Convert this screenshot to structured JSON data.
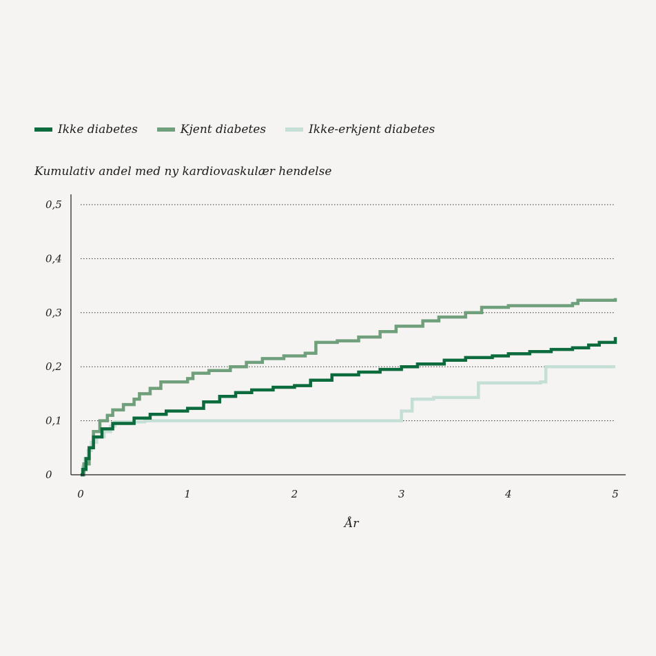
{
  "chart_data": {
    "type": "line",
    "title": "",
    "ylabel": "Kumulativ andel med ny kardiovaskulær hendelse",
    "xlabel": "År",
    "xlim": [
      0,
      5
    ],
    "ylim": [
      0,
      0.5
    ],
    "x_ticks": [
      0,
      1,
      2,
      3,
      4,
      5
    ],
    "x_tick_labels": [
      "0",
      "1",
      "2",
      "3",
      "4",
      "5"
    ],
    "y_ticks": [
      0,
      0.1,
      0.2,
      0.3,
      0.4,
      0.5
    ],
    "y_tick_labels": [
      "0",
      "0,1",
      "0,2",
      "0,3",
      "0,4",
      "0,5"
    ],
    "grid": "horizontal dotted",
    "legend_position": "top-left",
    "step": true,
    "series": [
      {
        "name": "Ikke diabetes",
        "color": "#0c6b3c",
        "points": [
          [
            0,
            0
          ],
          [
            0.02,
            0.01
          ],
          [
            0.05,
            0.03
          ],
          [
            0.08,
            0.05
          ],
          [
            0.12,
            0.07
          ],
          [
            0.2,
            0.085
          ],
          [
            0.3,
            0.095
          ],
          [
            0.5,
            0.105
          ],
          [
            0.65,
            0.112
          ],
          [
            0.8,
            0.118
          ],
          [
            1.0,
            0.123
          ],
          [
            1.15,
            0.135
          ],
          [
            1.3,
            0.145
          ],
          [
            1.45,
            0.152
          ],
          [
            1.6,
            0.157
          ],
          [
            1.8,
            0.162
          ],
          [
            2.0,
            0.165
          ],
          [
            2.15,
            0.175
          ],
          [
            2.35,
            0.185
          ],
          [
            2.6,
            0.19
          ],
          [
            2.8,
            0.195
          ],
          [
            3.0,
            0.2
          ],
          [
            3.15,
            0.205
          ],
          [
            3.4,
            0.212
          ],
          [
            3.6,
            0.217
          ],
          [
            3.85,
            0.22
          ],
          [
            4.0,
            0.224
          ],
          [
            4.2,
            0.228
          ],
          [
            4.4,
            0.232
          ],
          [
            4.6,
            0.235
          ],
          [
            4.75,
            0.24
          ],
          [
            4.85,
            0.245
          ],
          [
            5.0,
            0.255
          ]
        ]
      },
      {
        "name": "Kjent diabetes",
        "color": "#6f9f7b",
        "points": [
          [
            0,
            0
          ],
          [
            0.03,
            0.02
          ],
          [
            0.08,
            0.05
          ],
          [
            0.12,
            0.08
          ],
          [
            0.18,
            0.1
          ],
          [
            0.25,
            0.11
          ],
          [
            0.3,
            0.12
          ],
          [
            0.4,
            0.13
          ],
          [
            0.5,
            0.14
          ],
          [
            0.55,
            0.15
          ],
          [
            0.65,
            0.16
          ],
          [
            0.75,
            0.172
          ],
          [
            1.0,
            0.178
          ],
          [
            1.05,
            0.188
          ],
          [
            1.2,
            0.193
          ],
          [
            1.4,
            0.2
          ],
          [
            1.55,
            0.208
          ],
          [
            1.7,
            0.215
          ],
          [
            1.9,
            0.22
          ],
          [
            2.1,
            0.225
          ],
          [
            2.2,
            0.245
          ],
          [
            2.4,
            0.248
          ],
          [
            2.6,
            0.255
          ],
          [
            2.8,
            0.265
          ],
          [
            2.95,
            0.275
          ],
          [
            3.2,
            0.285
          ],
          [
            3.35,
            0.292
          ],
          [
            3.6,
            0.3
          ],
          [
            3.75,
            0.31
          ],
          [
            4.0,
            0.313
          ],
          [
            4.6,
            0.317
          ],
          [
            4.65,
            0.323
          ],
          [
            5.0,
            0.327
          ]
        ]
      },
      {
        "name": "Ikke-erkjent diabetes",
        "color": "#c6dfd6",
        "points": [
          [
            0,
            0
          ],
          [
            0.02,
            0.015
          ],
          [
            0.04,
            0.03
          ],
          [
            0.07,
            0.045
          ],
          [
            0.1,
            0.06
          ],
          [
            0.15,
            0.07
          ],
          [
            0.22,
            0.08
          ],
          [
            0.28,
            0.09
          ],
          [
            0.32,
            0.098
          ],
          [
            0.6,
            0.1
          ],
          [
            2.98,
            0.1
          ],
          [
            3.0,
            0.118
          ],
          [
            3.1,
            0.14
          ],
          [
            3.3,
            0.143
          ],
          [
            3.72,
            0.17
          ],
          [
            4.3,
            0.172
          ],
          [
            4.35,
            0.2
          ],
          [
            5.0,
            0.2
          ]
        ]
      }
    ]
  }
}
